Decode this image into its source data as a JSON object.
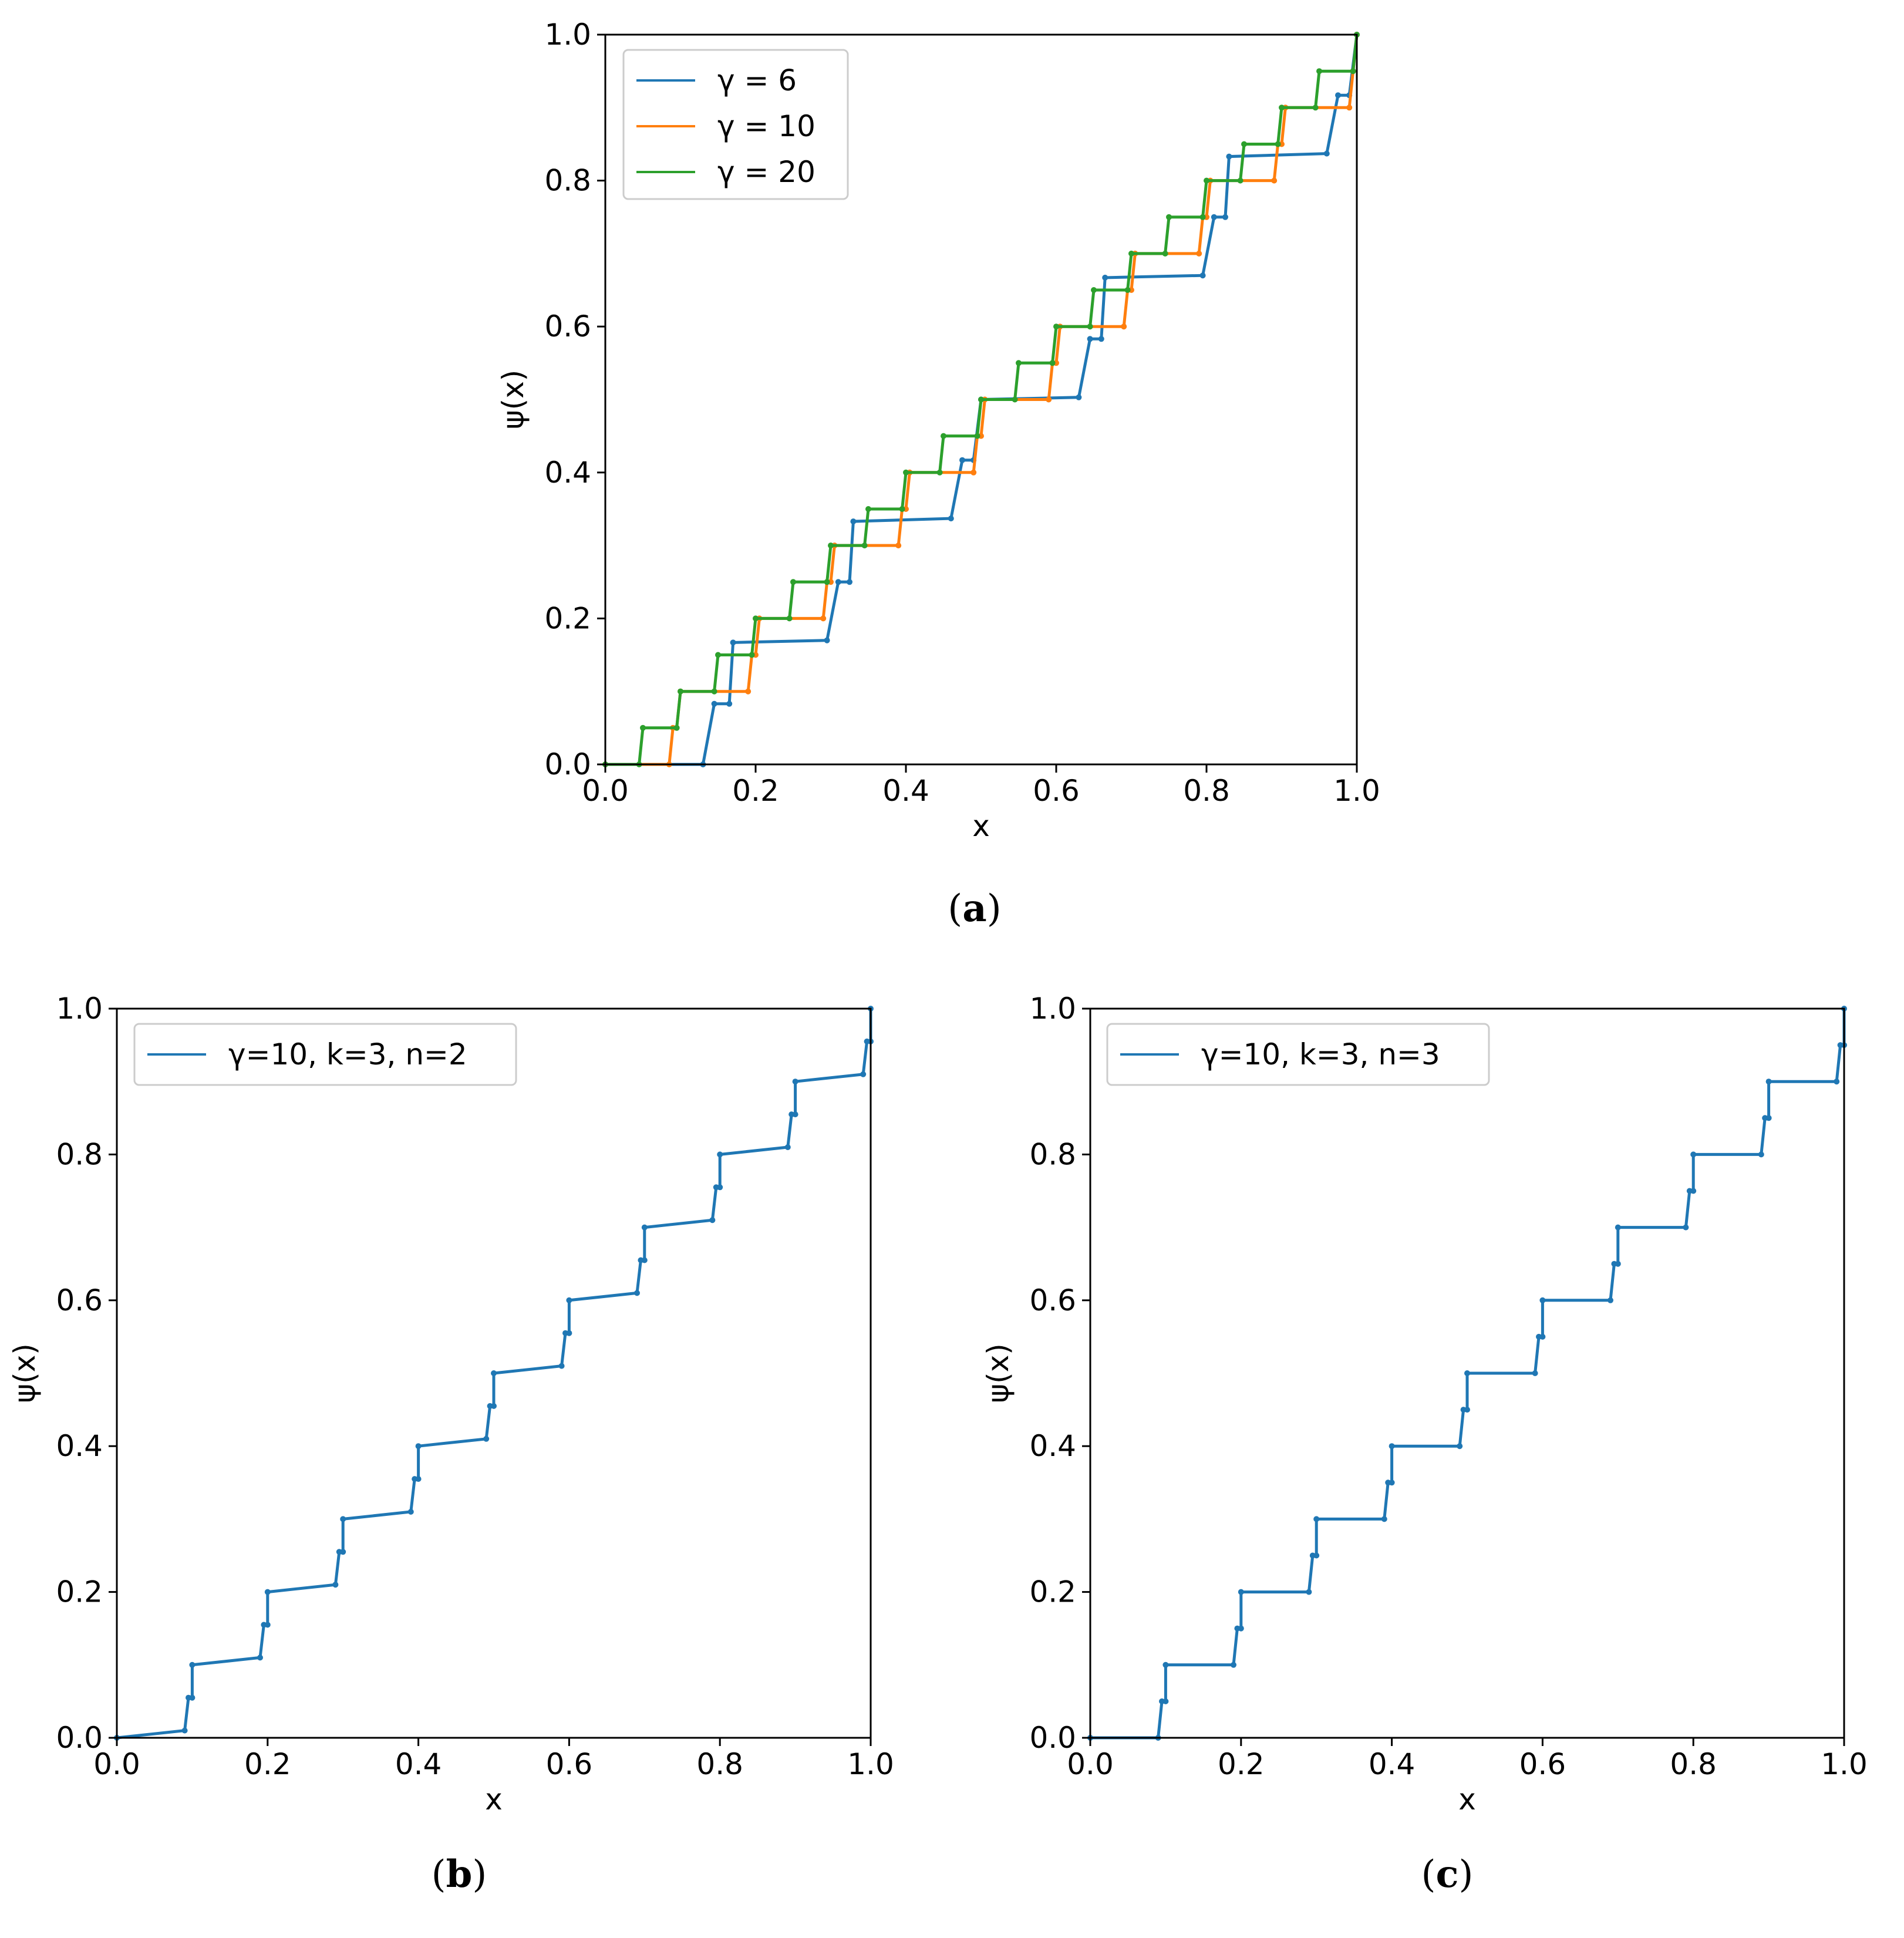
{
  "figure": {
    "panels": [
      {
        "id": "a",
        "caption_open": "(",
        "caption_letter": "a",
        "caption_close": ")"
      },
      {
        "id": "b",
        "caption_open": "(",
        "caption_letter": "b",
        "caption_close": ")"
      },
      {
        "id": "c",
        "caption_open": "(",
        "caption_letter": "c",
        "caption_close": ")"
      }
    ]
  },
  "colors": {
    "blue": "#1f77b4",
    "orange": "#ff7f0e",
    "green": "#2ca02c",
    "axis": "#000000",
    "legend_border": "#cccccc"
  },
  "chart_data": [
    {
      "panel": "a",
      "type": "line",
      "title": "",
      "xlabel": "x",
      "ylabel": "ψ(x)",
      "xlim": [
        0.0,
        1.0
      ],
      "ylim": [
        0.0,
        1.0
      ],
      "xticks": [
        "0.0",
        "0.2",
        "0.4",
        "0.6",
        "0.8",
        "1.0"
      ],
      "yticks": [
        "0.0",
        "0.2",
        "0.4",
        "0.6",
        "0.8",
        "1.0"
      ],
      "legend_position": "top-left",
      "series": [
        {
          "name": "γ = 6",
          "color": "#1f77b4",
          "points": [
            [
              0.0,
              0.0
            ],
            [
              0.13,
              0.0
            ],
            [
              0.13,
              0.0
            ],
            [
              0.145,
              0.083
            ],
            [
              0.165,
              0.083
            ],
            [
              0.17,
              0.167
            ],
            [
              0.295,
              0.17
            ],
            [
              0.31,
              0.25
            ],
            [
              0.325,
              0.25
            ],
            [
              0.33,
              0.333
            ],
            [
              0.46,
              0.337
            ],
            [
              0.475,
              0.417
            ],
            [
              0.49,
              0.417
            ],
            [
              0.5,
              0.5
            ],
            [
              0.63,
              0.503
            ],
            [
              0.645,
              0.583
            ],
            [
              0.66,
              0.583
            ],
            [
              0.665,
              0.667
            ],
            [
              0.795,
              0.67
            ],
            [
              0.81,
              0.75
            ],
            [
              0.825,
              0.75
            ],
            [
              0.83,
              0.833
            ],
            [
              0.96,
              0.837
            ],
            [
              0.975,
              0.917
            ],
            [
              0.99,
              0.917
            ],
            [
              1.0,
              1.0
            ]
          ]
        },
        {
          "name": "γ = 10",
          "color": "#ff7f0e",
          "points": [
            [
              0.0,
              0.0
            ],
            [
              0.085,
              0.0
            ],
            [
              0.09,
              0.05
            ],
            [
              0.095,
              0.05
            ],
            [
              0.1,
              0.1
            ],
            [
              0.19,
              0.1
            ],
            [
              0.195,
              0.15
            ],
            [
              0.2,
              0.15
            ],
            [
              0.205,
              0.2
            ],
            [
              0.29,
              0.2
            ],
            [
              0.295,
              0.25
            ],
            [
              0.3,
              0.25
            ],
            [
              0.305,
              0.3
            ],
            [
              0.39,
              0.3
            ],
            [
              0.395,
              0.35
            ],
            [
              0.4,
              0.35
            ],
            [
              0.405,
              0.4
            ],
            [
              0.49,
              0.4
            ],
            [
              0.495,
              0.45
            ],
            [
              0.5,
              0.45
            ],
            [
              0.505,
              0.5
            ],
            [
              0.59,
              0.5
            ],
            [
              0.595,
              0.55
            ],
            [
              0.6,
              0.55
            ],
            [
              0.605,
              0.6
            ],
            [
              0.69,
              0.6
            ],
            [
              0.695,
              0.65
            ],
            [
              0.7,
              0.65
            ],
            [
              0.705,
              0.7
            ],
            [
              0.79,
              0.7
            ],
            [
              0.795,
              0.75
            ],
            [
              0.8,
              0.75
            ],
            [
              0.805,
              0.8
            ],
            [
              0.89,
              0.8
            ],
            [
              0.895,
              0.85
            ],
            [
              0.9,
              0.85
            ],
            [
              0.905,
              0.9
            ],
            [
              0.99,
              0.9
            ],
            [
              0.995,
              0.95
            ],
            [
              1.0,
              1.0
            ]
          ]
        },
        {
          "name": "γ = 20",
          "color": "#2ca02c",
          "points": [
            [
              0.0,
              0.0
            ],
            [
              0.045,
              0.0
            ],
            [
              0.05,
              0.05
            ],
            [
              0.095,
              0.05
            ],
            [
              0.1,
              0.1
            ],
            [
              0.145,
              0.1
            ],
            [
              0.15,
              0.15
            ],
            [
              0.195,
              0.15
            ],
            [
              0.2,
              0.2
            ],
            [
              0.245,
              0.2
            ],
            [
              0.25,
              0.25
            ],
            [
              0.295,
              0.25
            ],
            [
              0.3,
              0.3
            ],
            [
              0.345,
              0.3
            ],
            [
              0.35,
              0.35
            ],
            [
              0.395,
              0.35
            ],
            [
              0.4,
              0.4
            ],
            [
              0.445,
              0.4
            ],
            [
              0.45,
              0.45
            ],
            [
              0.495,
              0.45
            ],
            [
              0.5,
              0.5
            ],
            [
              0.545,
              0.5
            ],
            [
              0.55,
              0.55
            ],
            [
              0.595,
              0.55
            ],
            [
              0.6,
              0.6
            ],
            [
              0.645,
              0.6
            ],
            [
              0.65,
              0.65
            ],
            [
              0.695,
              0.65
            ],
            [
              0.7,
              0.7
            ],
            [
              0.745,
              0.7
            ],
            [
              0.75,
              0.75
            ],
            [
              0.795,
              0.75
            ],
            [
              0.8,
              0.8
            ],
            [
              0.845,
              0.8
            ],
            [
              0.85,
              0.85
            ],
            [
              0.895,
              0.85
            ],
            [
              0.9,
              0.9
            ],
            [
              0.945,
              0.9
            ],
            [
              0.95,
              0.95
            ],
            [
              0.995,
              0.95
            ],
            [
              1.0,
              1.0
            ]
          ]
        }
      ]
    },
    {
      "panel": "b",
      "type": "line",
      "title": "",
      "xlabel": "x",
      "ylabel": "ψ(x)",
      "xlim": [
        0.0,
        1.0
      ],
      "ylim": [
        0.0,
        1.0
      ],
      "xticks": [
        "0.0",
        "0.2",
        "0.4",
        "0.6",
        "0.8",
        "1.0"
      ],
      "yticks": [
        "0.0",
        "0.2",
        "0.4",
        "0.6",
        "0.8",
        "1.0"
      ],
      "legend_position": "top-left",
      "series": [
        {
          "name": "γ=10, k=3, n=2",
          "color": "#1f77b4",
          "points": [
            [
              0.0,
              0.0
            ],
            [
              0.09,
              0.01
            ],
            [
              0.095,
              0.055
            ],
            [
              0.1,
              0.055
            ],
            [
              0.1,
              0.1
            ],
            [
              0.19,
              0.11
            ],
            [
              0.195,
              0.155
            ],
            [
              0.2,
              0.155
            ],
            [
              0.2,
              0.2
            ],
            [
              0.29,
              0.21
            ],
            [
              0.295,
              0.255
            ],
            [
              0.3,
              0.255
            ],
            [
              0.3,
              0.3
            ],
            [
              0.39,
              0.31
            ],
            [
              0.395,
              0.355
            ],
            [
              0.4,
              0.355
            ],
            [
              0.4,
              0.4
            ],
            [
              0.49,
              0.41
            ],
            [
              0.495,
              0.455
            ],
            [
              0.5,
              0.455
            ],
            [
              0.5,
              0.5
            ],
            [
              0.59,
              0.51
            ],
            [
              0.595,
              0.555
            ],
            [
              0.6,
              0.555
            ],
            [
              0.6,
              0.6
            ],
            [
              0.69,
              0.61
            ],
            [
              0.695,
              0.655
            ],
            [
              0.7,
              0.655
            ],
            [
              0.7,
              0.7
            ],
            [
              0.79,
              0.71
            ],
            [
              0.795,
              0.755
            ],
            [
              0.8,
              0.755
            ],
            [
              0.8,
              0.8
            ],
            [
              0.89,
              0.81
            ],
            [
              0.895,
              0.855
            ],
            [
              0.9,
              0.855
            ],
            [
              0.9,
              0.9
            ],
            [
              0.99,
              0.91
            ],
            [
              0.995,
              0.955
            ],
            [
              1.0,
              0.955
            ],
            [
              1.0,
              1.0
            ]
          ]
        }
      ]
    },
    {
      "panel": "c",
      "type": "line",
      "title": "",
      "xlabel": "x",
      "ylabel": "ψ(x)",
      "xlim": [
        0.0,
        1.0
      ],
      "ylim": [
        0.0,
        1.0
      ],
      "xticks": [
        "0.0",
        "0.2",
        "0.4",
        "0.6",
        "0.8",
        "1.0"
      ],
      "yticks": [
        "0.0",
        "0.2",
        "0.4",
        "0.6",
        "0.8",
        "1.0"
      ],
      "legend_position": "top-left",
      "series": [
        {
          "name": "γ=10, k=3, n=3",
          "color": "#1f77b4",
          "points": [
            [
              0.0,
              0.0
            ],
            [
              0.09,
              0.0
            ],
            [
              0.095,
              0.05
            ],
            [
              0.1,
              0.05
            ],
            [
              0.1,
              0.1
            ],
            [
              0.19,
              0.1
            ],
            [
              0.195,
              0.15
            ],
            [
              0.2,
              0.15
            ],
            [
              0.2,
              0.2
            ],
            [
              0.29,
              0.2
            ],
            [
              0.295,
              0.25
            ],
            [
              0.3,
              0.25
            ],
            [
              0.3,
              0.3
            ],
            [
              0.39,
              0.3
            ],
            [
              0.395,
              0.35
            ],
            [
              0.4,
              0.35
            ],
            [
              0.4,
              0.4
            ],
            [
              0.49,
              0.4
            ],
            [
              0.495,
              0.45
            ],
            [
              0.5,
              0.45
            ],
            [
              0.5,
              0.5
            ],
            [
              0.59,
              0.5
            ],
            [
              0.595,
              0.55
            ],
            [
              0.6,
              0.55
            ],
            [
              0.6,
              0.6
            ],
            [
              0.69,
              0.6
            ],
            [
              0.695,
              0.65
            ],
            [
              0.7,
              0.65
            ],
            [
              0.7,
              0.7
            ],
            [
              0.79,
              0.7
            ],
            [
              0.795,
              0.75
            ],
            [
              0.8,
              0.75
            ],
            [
              0.8,
              0.8
            ],
            [
              0.89,
              0.8
            ],
            [
              0.895,
              0.85
            ],
            [
              0.9,
              0.85
            ],
            [
              0.9,
              0.9
            ],
            [
              0.99,
              0.9
            ],
            [
              0.995,
              0.95
            ],
            [
              1.0,
              0.95
            ],
            [
              1.0,
              1.0
            ]
          ]
        }
      ]
    }
  ]
}
